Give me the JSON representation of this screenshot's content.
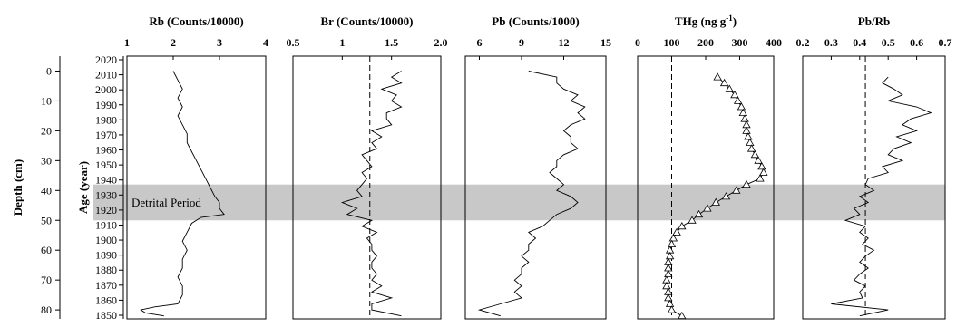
{
  "figure": {
    "depth_label": "Depth (cm)",
    "age_label": "Age (year)",
    "band_label": "Detrital Period",
    "depth_ticks": [
      0,
      10,
      20,
      30,
      40,
      50,
      60,
      70,
      80
    ],
    "age_ticks": [
      2020,
      2010,
      2000,
      1990,
      1980,
      1970,
      1960,
      1950,
      1940,
      1930,
      1920,
      1910,
      1900,
      1890,
      1880,
      1870,
      1860,
      1850
    ],
    "shading_color": "#c8c8c8"
  },
  "chart_data": [
    {
      "type": "line",
      "title": "Rb (Counts/10000)",
      "xlim": [
        1,
        4
      ],
      "x_ticks": [
        "1",
        "2",
        "3",
        "4"
      ],
      "ylim": [
        -5,
        83
      ],
      "detrital_band_depth": [
        38,
        50
      ],
      "depth": [
        0,
        3,
        6,
        9,
        12,
        15,
        18,
        21,
        24,
        27,
        30,
        33,
        36,
        39,
        42,
        44,
        46,
        48,
        49,
        51,
        54,
        57,
        60,
        63,
        66,
        69,
        72,
        75,
        78,
        79,
        80,
        81,
        82
      ],
      "values": [
        2.0,
        2.1,
        2.2,
        2.1,
        2.2,
        2.1,
        2.2,
        2.3,
        2.3,
        2.4,
        2.5,
        2.6,
        2.7,
        2.8,
        2.9,
        3.0,
        3.0,
        3.1,
        2.6,
        2.4,
        2.3,
        2.2,
        2.3,
        2.2,
        2.2,
        2.1,
        2.2,
        2.2,
        2.1,
        1.6,
        1.3,
        1.4,
        1.8
      ]
    },
    {
      "type": "line",
      "title": "Br (Counts/10000)",
      "xlim": [
        0.5,
        2.0
      ],
      "x_ticks": [
        "0.5",
        "1",
        "1.5",
        "2.0"
      ],
      "ylim": [
        -5,
        83
      ],
      "reference_line": 1.28,
      "detrital_band_depth": [
        38,
        50
      ],
      "depth": [
        0,
        2,
        4,
        6,
        8,
        10,
        12,
        14,
        16,
        18,
        20,
        22,
        24,
        26,
        28,
        30,
        32,
        34,
        36,
        38,
        40,
        42,
        44,
        46,
        48,
        50,
        52,
        54,
        56,
        58,
        60,
        62,
        64,
        66,
        68,
        70,
        72,
        74,
        76,
        78,
        80,
        82
      ],
      "values": [
        1.6,
        1.5,
        1.6,
        1.4,
        1.55,
        1.5,
        1.6,
        1.45,
        1.45,
        1.5,
        1.3,
        1.4,
        1.3,
        1.35,
        1.2,
        1.25,
        1.3,
        1.2,
        1.25,
        1.2,
        1.15,
        1.2,
        1.0,
        1.15,
        1.05,
        1.3,
        1.2,
        1.35,
        1.25,
        1.3,
        1.3,
        1.35,
        1.3,
        1.3,
        1.35,
        1.3,
        1.4,
        1.3,
        1.5,
        1.3,
        1.3,
        1.6
      ]
    },
    {
      "type": "line",
      "title": "Pb (Counts/1000)",
      "xlim": [
        5,
        15
      ],
      "x_ticks": [
        "6",
        "9",
        "12",
        "15"
      ],
      "ylim": [
        -5,
        83
      ],
      "detrital_band_depth": [
        38,
        50
      ],
      "depth": [
        0,
        2,
        4,
        6,
        8,
        10,
        12,
        14,
        16,
        18,
        20,
        22,
        24,
        26,
        28,
        30,
        32,
        34,
        36,
        38,
        40,
        42,
        44,
        46,
        48,
        50,
        52,
        54,
        56,
        58,
        60,
        62,
        64,
        66,
        68,
        70,
        72,
        74,
        76,
        78,
        80,
        82
      ],
      "values": [
        9.5,
        11.5,
        11.5,
        12.0,
        13.0,
        12.5,
        13.5,
        13.0,
        13.5,
        12.5,
        12.0,
        12.5,
        12.5,
        13.0,
        12.0,
        11.5,
        11.5,
        11.0,
        11.5,
        12.0,
        11.5,
        12.5,
        13.0,
        12.5,
        11.5,
        11.0,
        10.5,
        9.5,
        10.0,
        9.5,
        9.5,
        9.0,
        9.5,
        9.0,
        9.0,
        8.5,
        9.0,
        8.5,
        9.0,
        7.5,
        6.0,
        7.5
      ]
    },
    {
      "type": "line",
      "title": "THg (ng g",
      "title_sup": "-1",
      "title_end": ")",
      "xlim": [
        0,
        400
      ],
      "x_ticks": [
        "0",
        "100",
        "200",
        "300",
        "400"
      ],
      "ylim": [
        -5,
        83
      ],
      "reference_line": 100,
      "markers": "triangle",
      "detrital_band_depth": [
        38,
        50
      ],
      "depth": [
        2,
        4,
        6,
        8,
        10,
        12,
        14,
        16,
        18,
        20,
        22,
        24,
        26,
        28,
        30,
        32,
        34,
        36,
        38,
        40,
        42,
        44,
        46,
        48,
        50,
        52,
        54,
        56,
        58,
        60,
        62,
        64,
        66,
        68,
        70,
        72,
        74,
        76,
        78,
        80,
        82
      ],
      "values": [
        235,
        255,
        270,
        285,
        295,
        305,
        310,
        315,
        320,
        320,
        325,
        330,
        335,
        345,
        355,
        365,
        370,
        360,
        320,
        290,
        260,
        230,
        205,
        180,
        160,
        130,
        115,
        105,
        100,
        95,
        95,
        90,
        90,
        90,
        85,
        85,
        90,
        90,
        95,
        100,
        130
      ]
    },
    {
      "type": "line",
      "title": "Pb/Rb",
      "xlim": [
        0.2,
        0.7
      ],
      "x_ticks": [
        "0.2",
        "0.3",
        "0.4",
        "0.5",
        "0.6",
        "0.7"
      ],
      "ylim": [
        -5,
        83
      ],
      "reference_line": 0.42,
      "detrital_band_depth": [
        38,
        50
      ],
      "depth": [
        2,
        4,
        6,
        8,
        10,
        12,
        14,
        16,
        18,
        20,
        22,
        24,
        26,
        28,
        30,
        32,
        34,
        36,
        38,
        40,
        42,
        44,
        46,
        48,
        50,
        52,
        54,
        56,
        58,
        60,
        62,
        64,
        66,
        68,
        70,
        72,
        74,
        76,
        78,
        80,
        82
      ],
      "values": [
        0.5,
        0.48,
        0.52,
        0.55,
        0.5,
        0.6,
        0.65,
        0.58,
        0.55,
        0.6,
        0.53,
        0.58,
        0.52,
        0.5,
        0.55,
        0.48,
        0.5,
        0.43,
        0.42,
        0.45,
        0.4,
        0.43,
        0.38,
        0.4,
        0.35,
        0.42,
        0.4,
        0.43,
        0.41,
        0.45,
        0.42,
        0.4,
        0.43,
        0.4,
        0.38,
        0.42,
        0.4,
        0.41,
        0.3,
        0.5,
        0.4
      ]
    }
  ]
}
